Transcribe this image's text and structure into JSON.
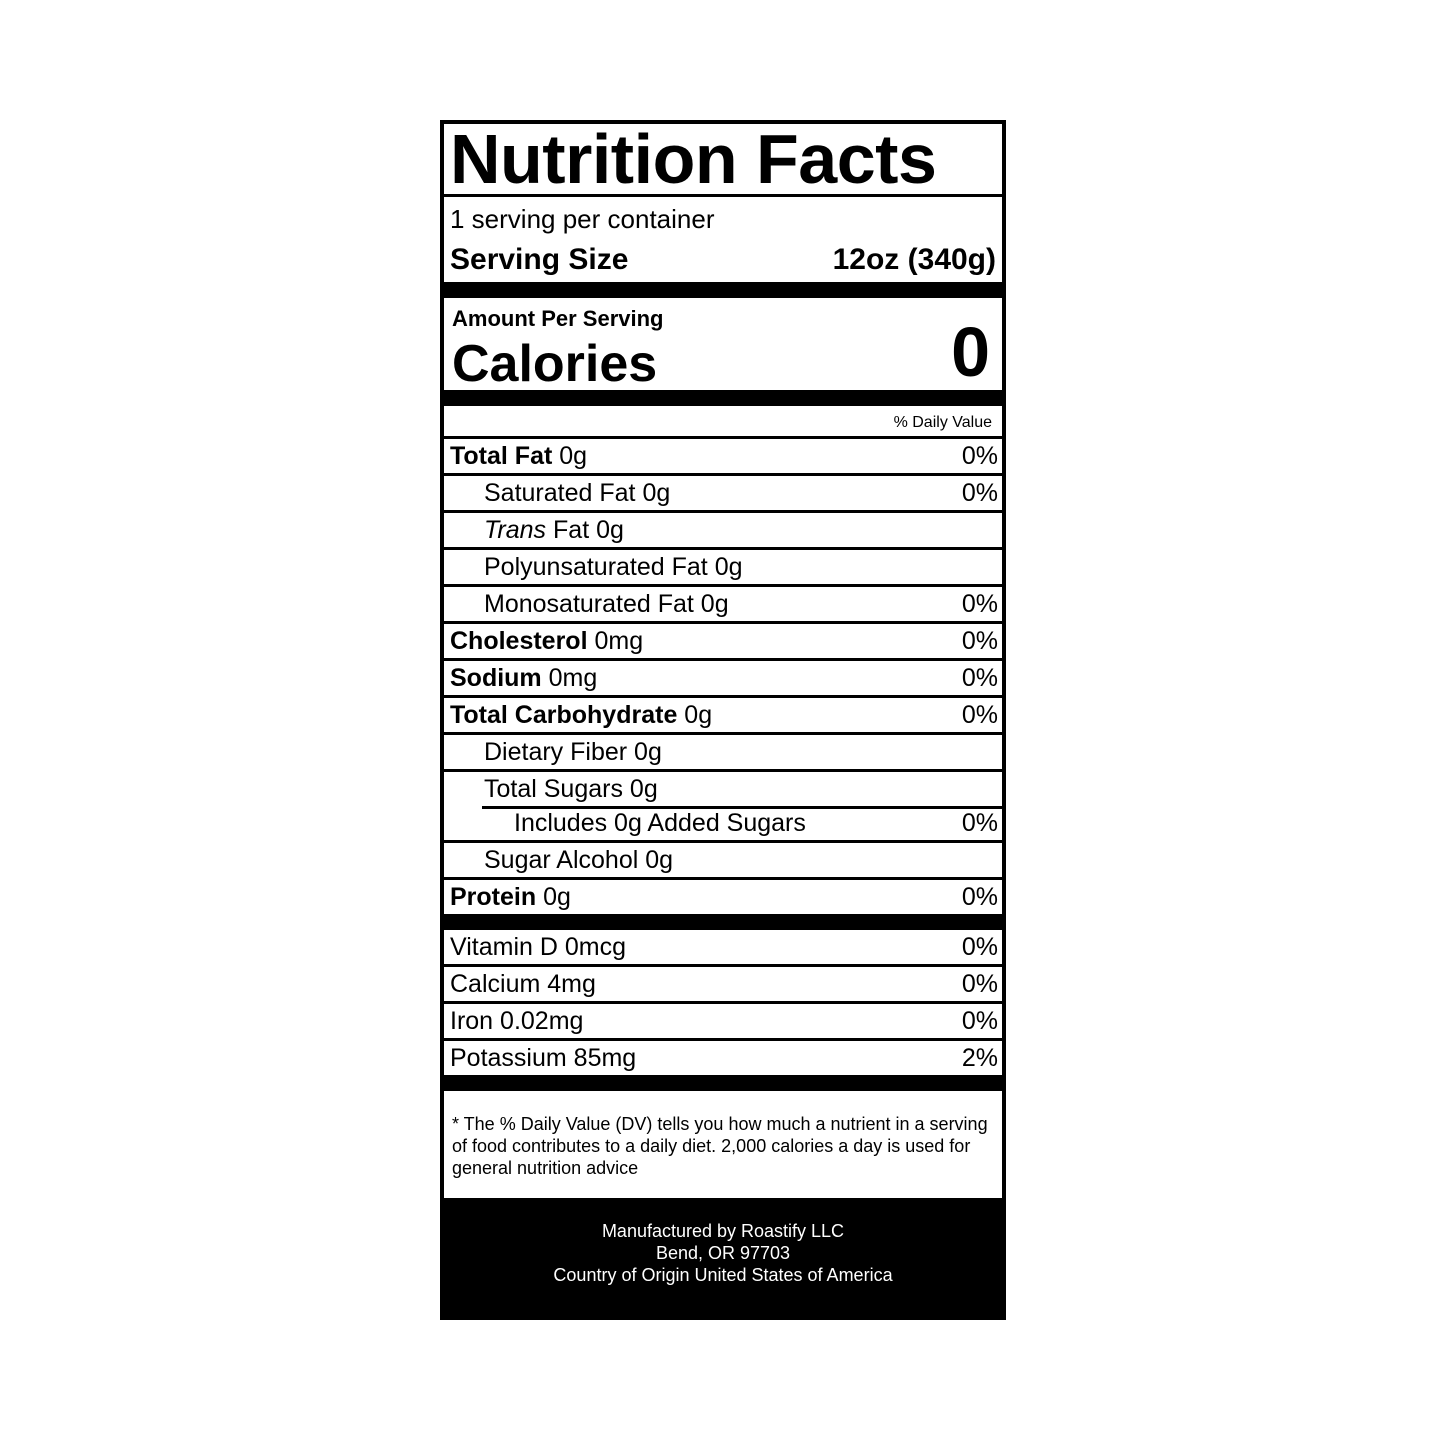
{
  "title": "Nutrition Facts",
  "servings": "1 serving per container",
  "serving_size": {
    "label": "Serving Size",
    "value": "12oz (340g)"
  },
  "calories": {
    "heading": "Amount Per Serving",
    "label": "Calories",
    "value": "0"
  },
  "dv_header": "% Daily Value",
  "nutrients": [
    {
      "name": "Total Fat",
      "amount": "0g",
      "dv": "0%",
      "bold": true,
      "indent": 0
    },
    {
      "name": "Saturated Fat",
      "amount": "0g",
      "dv": "0%",
      "bold": false,
      "indent": 1
    },
    {
      "name_italic": "Trans",
      "name": "Fat",
      "amount": "0g",
      "bold": false,
      "indent": 1
    },
    {
      "name": "Polyunsaturated Fat",
      "amount": "0g",
      "bold": false,
      "indent": 1
    },
    {
      "name": "Monosaturated Fat",
      "amount": "0g",
      "dv": "0%",
      "bold": false,
      "indent": 1
    },
    {
      "name": "Cholesterol",
      "amount": "0mg",
      "dv": "0%",
      "bold": true,
      "indent": 0
    },
    {
      "name": "Sodium",
      "amount": "0mg",
      "dv": "0%",
      "bold": true,
      "indent": 0
    },
    {
      "name": "Total Carbohydrate",
      "amount": "0g",
      "dv": "0%",
      "bold": true,
      "indent": 0
    },
    {
      "name": "Dietary Fiber",
      "amount": "0g",
      "bold": false,
      "indent": 1
    },
    {
      "name": "Total Sugars",
      "amount": "0g",
      "bold": false,
      "indent": 1
    },
    {
      "name": "Includes 0g Added Sugars",
      "dv": "0%",
      "bold": false,
      "indent": 2
    },
    {
      "name": "Sugar Alcohol",
      "amount": "0g",
      "bold": false,
      "indent": 1
    },
    {
      "name": "Protein",
      "amount": "0g",
      "dv": "0%",
      "bold": true,
      "indent": 0
    }
  ],
  "vitamins": [
    {
      "name": "Vitamin D",
      "amount": "0mcg",
      "dv": "0%"
    },
    {
      "name": "Calcium",
      "amount": "4mg",
      "dv": "0%"
    },
    {
      "name": "Iron",
      "amount": "0.02mg",
      "dv": "0%"
    },
    {
      "name": "Potassium",
      "amount": "85mg",
      "dv": "2%"
    }
  ],
  "footnote": "* The % Daily Value (DV) tells you how much a nutrient in a serving of food contributes to a daily diet. 2,000 calories a day is used for general nutrition advice",
  "manufacturer": [
    "Manufactured by Roastify LLC",
    "Bend, OR 97703",
    "Country of Origin United States of America"
  ]
}
